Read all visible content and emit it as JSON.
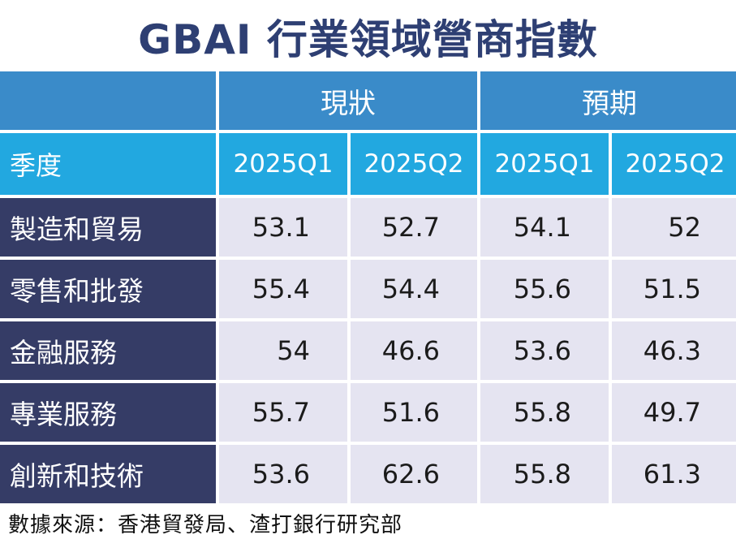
{
  "title": "GBAI 行業領域營商指數",
  "groups": {
    "current": "現狀",
    "expected": "預期"
  },
  "header": {
    "label": "季度",
    "cols": [
      "2025Q1",
      "2025Q2",
      "2025Q1",
      "2025Q2"
    ]
  },
  "rows": [
    {
      "label": "製造和貿易",
      "values": [
        "53.1",
        "52.7",
        "54.1",
        "52"
      ]
    },
    {
      "label": "零售和批發",
      "values": [
        "55.4",
        "54.4",
        "55.6",
        "51.5"
      ]
    },
    {
      "label": "金融服務",
      "values": [
        "54",
        "46.6",
        "53.6",
        "46.3"
      ]
    },
    {
      "label": "專業服務",
      "values": [
        "55.7",
        "51.6",
        "55.8",
        "49.7"
      ]
    },
    {
      "label": "創新和技術",
      "values": [
        "53.6",
        "62.6",
        "55.8",
        "61.3"
      ]
    }
  ],
  "source": "數據來源：香港貿發局、渣打銀行研究部",
  "colors": {
    "title": "#2e3f73",
    "group_header": "#3a8bc9",
    "sub_header": "#22a8e0",
    "row_label_bg": "#353c66",
    "cell_bg": "#e5e4f1"
  }
}
